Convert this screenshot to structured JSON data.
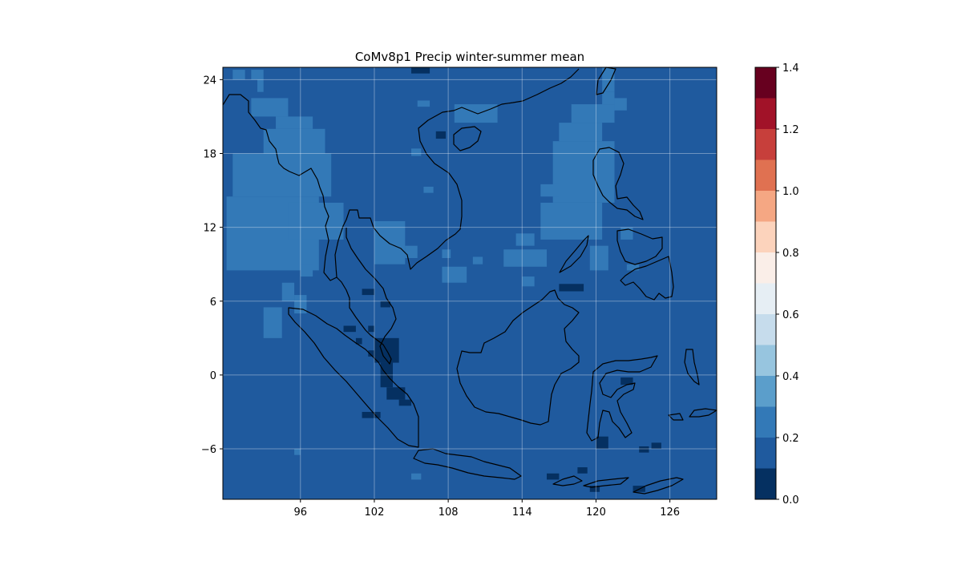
{
  "chart_data": {
    "type": "heatmap",
    "title": "CoMv8p1 Precip winter-summer mean",
    "xlabel": "",
    "ylabel": "",
    "xlim": [
      89.7,
      129.8
    ],
    "ylim": [
      -10.1,
      25.0
    ],
    "xticks": [
      96,
      102,
      108,
      114,
      120,
      126
    ],
    "xtick_labels": [
      "96",
      "102",
      "108",
      "114",
      "120",
      "126"
    ],
    "yticks": [
      -6,
      0,
      6,
      12,
      18,
      24
    ],
    "ytick_labels": [
      "−6",
      "0",
      "6",
      "12",
      "18",
      "24"
    ],
    "grid": true,
    "base_value": 0.15,
    "colorbar": {
      "levels": [
        0.0,
        0.1,
        0.2,
        0.3,
        0.4,
        0.5,
        0.6,
        0.7,
        0.8,
        0.9,
        1.0,
        1.1,
        1.2,
        1.3,
        1.4
      ],
      "colors": [
        "#053061",
        "#1f5a9e",
        "#3379b7",
        "#5b9ecb",
        "#97c5df",
        "#c6dcec",
        "#e6eef4",
        "#faeee8",
        "#fcd3bc",
        "#f5a783",
        "#e07151",
        "#c73f3b",
        "#a11228",
        "#67001f"
      ],
      "tick_values": [
        0.0,
        0.2,
        0.4,
        0.6,
        0.8,
        1.0,
        1.2,
        1.4
      ],
      "tick_labels": [
        "0.0",
        "0.2",
        "0.4",
        "0.6",
        "0.8",
        "1.0",
        "1.2",
        "1.4"
      ]
    },
    "regions": [
      {
        "value": 0.25,
        "lon": [
          90.0,
          97.5
        ],
        "lat": [
          8.5,
          14.5
        ]
      },
      {
        "value": 0.25,
        "lon": [
          90.5,
          98.5
        ],
        "lat": [
          14.5,
          18.0
        ]
      },
      {
        "value": 0.25,
        "lon": [
          93.0,
          98.0
        ],
        "lat": [
          18.0,
          20.0
        ]
      },
      {
        "value": 0.25,
        "lon": [
          94.0,
          97.0
        ],
        "lat": [
          20.0,
          21.0
        ]
      },
      {
        "value": 0.25,
        "lon": [
          95.0,
          99.5
        ],
        "lat": [
          11.0,
          14.0
        ]
      },
      {
        "value": 0.25,
        "lon": [
          92.0,
          95.0
        ],
        "lat": [
          21.0,
          22.5
        ]
      },
      {
        "value": 0.25,
        "lon": [
          90.5,
          91.5
        ],
        "lat": [
          24.0,
          24.8
        ]
      },
      {
        "value": 0.25,
        "lon": [
          92.0,
          93.0
        ],
        "lat": [
          24.0,
          24.8
        ]
      },
      {
        "value": 0.25,
        "lon": [
          92.5,
          93.0
        ],
        "lat": [
          23.0,
          24.0
        ]
      },
      {
        "value": 0.25,
        "lon": [
          94.5,
          95.5
        ],
        "lat": [
          6.0,
          7.5
        ]
      },
      {
        "value": 0.25,
        "lon": [
          93.0,
          94.5
        ],
        "lat": [
          3.0,
          5.5
        ]
      },
      {
        "value": 0.25,
        "lon": [
          95.5,
          96.5
        ],
        "lat": [
          5.0,
          6.5
        ]
      },
      {
        "value": 0.25,
        "lon": [
          96.0,
          97.0
        ],
        "lat": [
          8.0,
          9.0
        ]
      },
      {
        "value": 0.25,
        "lon": [
          95.5,
          96.0
        ],
        "lat": [
          -6.5,
          -6.0
        ]
      },
      {
        "value": 0.25,
        "lon": [
          102.0,
          104.5
        ],
        "lat": [
          9.0,
          12.5
        ]
      },
      {
        "value": 0.25,
        "lon": [
          104.5,
          105.5
        ],
        "lat": [
          9.5,
          10.5
        ]
      },
      {
        "value": 0.25,
        "lon": [
          105.0,
          105.8
        ],
        "lat": [
          17.8,
          18.4
        ]
      },
      {
        "value": 0.25,
        "lon": [
          105.5,
          106.5
        ],
        "lat": [
          21.8,
          22.3
        ]
      },
      {
        "value": 0.25,
        "lon": [
          108.5,
          112.0
        ],
        "lat": [
          20.5,
          22.0
        ]
      },
      {
        "value": 0.25,
        "lon": [
          106.0,
          106.8
        ],
        "lat": [
          14.8,
          15.3
        ]
      },
      {
        "value": 0.25,
        "lon": [
          107.5,
          108.2
        ],
        "lat": [
          9.5,
          10.2
        ]
      },
      {
        "value": 0.25,
        "lon": [
          107.5,
          109.5
        ],
        "lat": [
          7.5,
          8.8
        ]
      },
      {
        "value": 0.25,
        "lon": [
          110.0,
          110.8
        ],
        "lat": [
          9.0,
          9.6
        ]
      },
      {
        "value": 0.25,
        "lon": [
          112.5,
          116.0
        ],
        "lat": [
          8.8,
          10.2
        ]
      },
      {
        "value": 0.25,
        "lon": [
          113.5,
          115.0
        ],
        "lat": [
          10.5,
          11.5
        ]
      },
      {
        "value": 0.25,
        "lon": [
          114.0,
          115.0
        ],
        "lat": [
          7.2,
          8.0
        ]
      },
      {
        "value": 0.25,
        "lon": [
          115.5,
          120.5
        ],
        "lat": [
          11.0,
          14.0
        ]
      },
      {
        "value": 0.25,
        "lon": [
          116.5,
          121.5
        ],
        "lat": [
          14.0,
          19.0
        ]
      },
      {
        "value": 0.25,
        "lon": [
          117.0,
          120.5
        ],
        "lat": [
          19.0,
          20.5
        ]
      },
      {
        "value": 0.25,
        "lon": [
          118.0,
          121.5
        ],
        "lat": [
          20.5,
          22.0
        ]
      },
      {
        "value": 0.25,
        "lon": [
          115.5,
          117.0
        ],
        "lat": [
          14.5,
          15.5
        ]
      },
      {
        "value": 0.25,
        "lon": [
          119.5,
          121.0
        ],
        "lat": [
          8.5,
          10.5
        ]
      },
      {
        "value": 0.25,
        "lon": [
          120.5,
          121.5
        ],
        "lat": [
          22.0,
          23.0
        ]
      },
      {
        "value": 0.25,
        "lon": [
          120.5,
          121.5
        ],
        "lat": [
          23.0,
          25.0
        ]
      },
      {
        "value": 0.25,
        "lon": [
          121.5,
          122.5
        ],
        "lat": [
          21.5,
          22.5
        ]
      },
      {
        "value": 0.25,
        "lon": [
          122.0,
          123.0
        ],
        "lat": [
          11.0,
          12.0
        ]
      },
      {
        "value": 0.25,
        "lon": [
          122.5,
          123.5
        ],
        "lat": [
          8.5,
          9.0
        ]
      },
      {
        "value": 0.25,
        "lon": [
          105.0,
          105.8
        ],
        "lat": [
          -8.5,
          -8.0
        ]
      },
      {
        "value": 0.05,
        "lon": [
          105.0,
          106.5
        ],
        "lat": [
          24.5,
          25.0
        ]
      },
      {
        "value": 0.05,
        "lon": [
          107.0,
          107.8
        ],
        "lat": [
          19.2,
          19.8
        ]
      },
      {
        "value": 0.05,
        "lon": [
          101.0,
          102.0
        ],
        "lat": [
          6.5,
          7.0
        ]
      },
      {
        "value": 0.05,
        "lon": [
          102.5,
          103.3
        ],
        "lat": [
          5.5,
          6.0
        ]
      },
      {
        "value": 0.05,
        "lon": [
          99.5,
          100.5
        ],
        "lat": [
          3.5,
          4.0
        ]
      },
      {
        "value": 0.05,
        "lon": [
          100.5,
          101.0
        ],
        "lat": [
          2.5,
          3.0
        ]
      },
      {
        "value": 0.05,
        "lon": [
          101.5,
          102.0
        ],
        "lat": [
          3.5,
          4.0
        ]
      },
      {
        "value": 0.05,
        "lon": [
          101.5,
          102.5
        ],
        "lat": [
          1.5,
          2.0
        ]
      },
      {
        "value": 0.05,
        "lon": [
          102.0,
          104.0
        ],
        "lat": [
          1.0,
          3.0
        ]
      },
      {
        "value": 0.05,
        "lon": [
          102.5,
          103.5
        ],
        "lat": [
          -1.0,
          1.0
        ]
      },
      {
        "value": 0.05,
        "lon": [
          103.0,
          104.5
        ],
        "lat": [
          -2.0,
          -1.0
        ]
      },
      {
        "value": 0.05,
        "lon": [
          104.0,
          105.0
        ],
        "lat": [
          -2.5,
          -2.0
        ]
      },
      {
        "value": 0.05,
        "lon": [
          101.0,
          102.5
        ],
        "lat": [
          -3.5,
          -3.0
        ]
      },
      {
        "value": 0.05,
        "lon": [
          117.0,
          119.0
        ],
        "lat": [
          6.8,
          7.4
        ]
      },
      {
        "value": 0.05,
        "lon": [
          118.5,
          119.3
        ],
        "lat": [
          -8.0,
          -7.5
        ]
      },
      {
        "value": 0.05,
        "lon": [
          120.0,
          121.0
        ],
        "lat": [
          -6.0,
          -5.0
        ]
      },
      {
        "value": 0.05,
        "lon": [
          122.0,
          123.0
        ],
        "lat": [
          -0.8,
          -0.2
        ]
      },
      {
        "value": 0.05,
        "lon": [
          123.5,
          124.3
        ],
        "lat": [
          -6.3,
          -5.8
        ]
      },
      {
        "value": 0.05,
        "lon": [
          124.5,
          125.3
        ],
        "lat": [
          -6.0,
          -5.5
        ]
      },
      {
        "value": 0.05,
        "lon": [
          116.0,
          117.0
        ],
        "lat": [
          -8.5,
          -8.0
        ]
      },
      {
        "value": 0.05,
        "lon": [
          119.5,
          120.3
        ],
        "lat": [
          -9.5,
          -9.0
        ]
      },
      {
        "value": 0.05,
        "lon": [
          123.0,
          124.0
        ],
        "lat": [
          -9.5,
          -9.0
        ]
      }
    ]
  }
}
